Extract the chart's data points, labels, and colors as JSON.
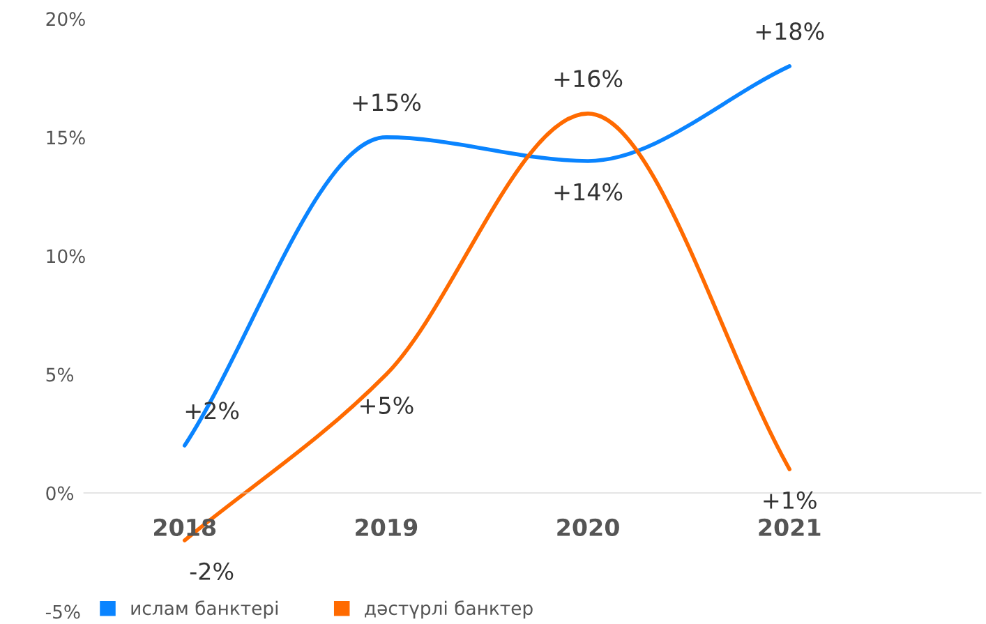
{
  "chart_data": {
    "type": "line",
    "categories": [
      "2018",
      "2019",
      "2020",
      "2021"
    ],
    "series": [
      {
        "name": "ислам банктері",
        "color": "#0a84ff",
        "values": [
          2,
          15,
          14,
          18
        ],
        "value_labels": [
          "+2%",
          "+15%",
          "+14%",
          "+18%"
        ]
      },
      {
        "name": "дәстүрлі банктер",
        "color": "#ff6a00",
        "values": [
          -2,
          5,
          16,
          1
        ],
        "value_labels": [
          "-2%",
          "+5%",
          "+16%",
          "+1%"
        ]
      }
    ],
    "ylim": [
      -5,
      20
    ],
    "yticks": [
      {
        "value": -5,
        "label": "-5%"
      },
      {
        "value": 0,
        "label": "0%"
      },
      {
        "value": 5,
        "label": "5%"
      },
      {
        "value": 10,
        "label": "10%"
      },
      {
        "value": 15,
        "label": "15%"
      },
      {
        "value": 20,
        "label": "20%"
      }
    ],
    "grid": false,
    "legend": "bottom left",
    "marker": "none",
    "line_style": "solid"
  }
}
